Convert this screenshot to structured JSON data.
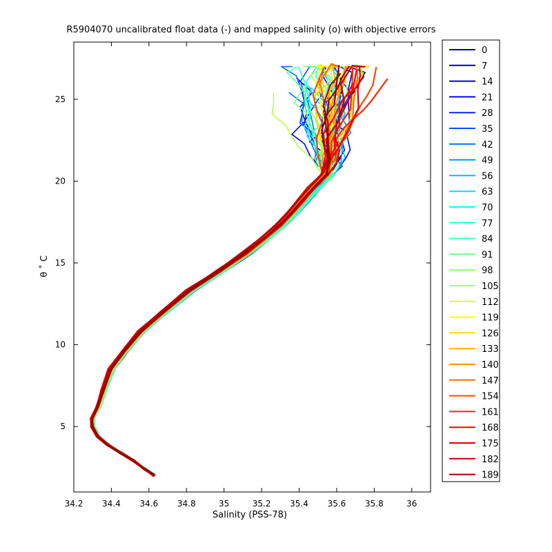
{
  "chart_data": {
    "type": "line",
    "title": "R5904070 uncalibrated float data (-) and mapped salinity (o) with objective errors",
    "xlabel": "Salinity (PSS-78)",
    "ylabel": "θ ˚ C",
    "xlim": [
      34.2,
      36.1
    ],
    "ylim": [
      1,
      28.5
    ],
    "xticks": [
      "34.2",
      "34.4",
      "34.6",
      "34.8",
      "35",
      "35.2",
      "35.4",
      "35.6",
      "35.8",
      "36"
    ],
    "yticks": [
      "5",
      "10",
      "15",
      "20",
      "25"
    ],
    "legend_position": "right",
    "colormap": "jet",
    "legend": [
      "0",
      "7",
      "14",
      "21",
      "28",
      "35",
      "42",
      "49",
      "56",
      "63",
      "70",
      "77",
      "84",
      "91",
      "98",
      "105",
      "112",
      "119",
      "126",
      "133",
      "140",
      "147",
      "154",
      "161",
      "168",
      "175",
      "182",
      "189"
    ],
    "legend_colors": [
      "#00008f",
      "#0000b4",
      "#0000d9",
      "#0003ff",
      "#0027ff",
      "#004cff",
      "#0070ff",
      "#0094ff",
      "#00b9ff",
      "#00ddff",
      "#06ffff",
      "#24ffdb",
      "#49ffb6",
      "#6dff92",
      "#92ff6d",
      "#b6ff49",
      "#dbff24",
      "#ffff00",
      "#ffdb00",
      "#ffb600",
      "#ff9200",
      "#ff6d00",
      "#ff4900",
      "#ff2400",
      "#ff0000",
      "#db0000",
      "#b60000",
      "#920000"
    ],
    "profile_series": {
      "description_note": "Each profile follows this approximate theta–salinity path, with small per-profile offsets",
      "salinity": [
        34.63,
        34.58,
        34.52,
        34.45,
        34.38,
        34.33,
        34.3,
        34.3,
        34.33,
        34.36,
        34.4,
        34.47,
        34.56,
        34.68,
        34.82,
        34.98,
        35.12,
        35.22,
        35.3,
        35.36,
        35.42,
        35.48,
        35.55
      ],
      "theta": [
        2.0,
        2.4,
        2.9,
        3.4,
        3.9,
        4.4,
        5.0,
        5.5,
        6.2,
        7.2,
        8.5,
        9.6,
        10.8,
        12.0,
        13.3,
        14.5,
        15.6,
        16.5,
        17.3,
        18.0,
        18.8,
        19.6,
        20.4
      ]
    }
  }
}
